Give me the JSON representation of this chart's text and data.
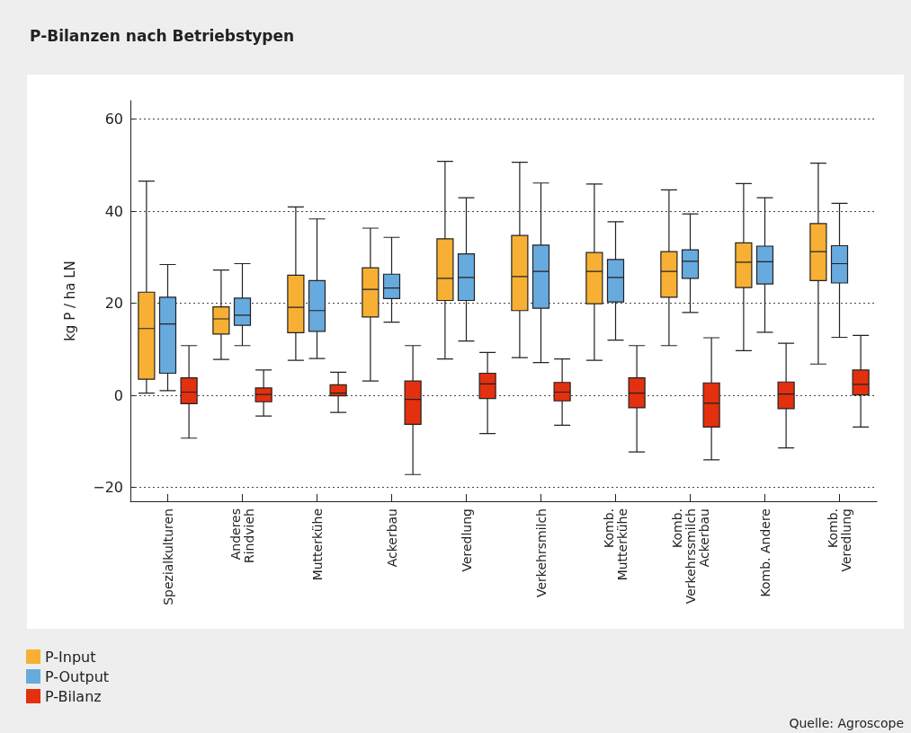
{
  "chart_data": {
    "type": "box",
    "title": "P-Bilanzen nach Betriebstypen",
    "ylabel": "kg P / ha LN",
    "categories": [
      "Spezialkulturen",
      "Anderes\nRindvieh",
      "Mutterkühe",
      "Ackerbau",
      "Veredlung",
      "Verkehrsmilch",
      "Komb.\nMutterkühe",
      "Komb.\nVerkehrssmilch\nAckerbau",
      "Komb. Andere",
      "Komb.\nVeredlung"
    ],
    "ylim": [
      -23,
      64
    ],
    "yticks": [
      -20,
      0,
      20,
      40,
      60
    ],
    "grid": "y",
    "legend": "bottom left",
    "annotations": [
      "Quelle: Agroscope"
    ],
    "series": [
      {
        "name": "P-Input",
        "color": "#f7b033",
        "boxes": [
          {
            "low": 0.5,
            "q1": 3.5,
            "median": 14.5,
            "q3": 22.4,
            "high": 46.5
          },
          {
            "low": 7.8,
            "q1": 13.3,
            "median": 16.6,
            "q3": 19.2,
            "high": 27.2
          },
          {
            "low": 7.6,
            "q1": 13.6,
            "median": 19.1,
            "q3": 26.1,
            "high": 40.9
          },
          {
            "low": 3.1,
            "q1": 17,
            "median": 23,
            "q3": 27.7,
            "high": 36.3
          },
          {
            "low": 7.9,
            "q1": 20.6,
            "median": 25.4,
            "q3": 34,
            "high": 50.8
          },
          {
            "low": 8.2,
            "q1": 18.4,
            "median": 25.8,
            "q3": 34.7,
            "high": 50.6
          },
          {
            "low": 7.6,
            "q1": 19.9,
            "median": 26.9,
            "q3": 31,
            "high": 45.9
          },
          {
            "low": 10.8,
            "q1": 21.3,
            "median": 26.9,
            "q3": 31.2,
            "high": 44.6
          },
          {
            "low": 9.7,
            "q1": 23.4,
            "median": 28.9,
            "q3": 33.1,
            "high": 46
          },
          {
            "low": 6.8,
            "q1": 24.9,
            "median": 31.2,
            "q3": 37.3,
            "high": 50.4
          }
        ]
      },
      {
        "name": "P-Output",
        "color": "#67aade",
        "boxes": [
          {
            "low": 1,
            "q1": 4.8,
            "median": 15.5,
            "q3": 21.3,
            "high": 28.4
          },
          {
            "low": 10.8,
            "q1": 15.2,
            "median": 17.4,
            "q3": 21.1,
            "high": 28.6
          },
          {
            "low": 8,
            "q1": 13.9,
            "median": 18.4,
            "q3": 24.9,
            "high": 38.3
          },
          {
            "low": 15.9,
            "q1": 21,
            "median": 23.3,
            "q3": 26.3,
            "high": 34.3
          },
          {
            "low": 11.8,
            "q1": 20.6,
            "median": 25.6,
            "q3": 30.7,
            "high": 42.9
          },
          {
            "low": 7.1,
            "q1": 18.9,
            "median": 26.9,
            "q3": 32.6,
            "high": 46.1
          },
          {
            "low": 12,
            "q1": 20.3,
            "median": 25.6,
            "q3": 29.5,
            "high": 37.7
          },
          {
            "low": 18,
            "q1": 25.4,
            "median": 29.1,
            "q3": 31.6,
            "high": 39.4
          },
          {
            "low": 13.7,
            "q1": 24.2,
            "median": 29,
            "q3": 32.4,
            "high": 42.9
          },
          {
            "low": 12.6,
            "q1": 24.4,
            "median": 28.6,
            "q3": 32.5,
            "high": 41.7
          }
        ]
      },
      {
        "name": "P-Bilanz",
        "color": "#e3300e",
        "boxes": [
          {
            "low": -9.3,
            "q1": -1.8,
            "median": 0.7,
            "q3": 3.8,
            "high": 10.8
          },
          {
            "low": -4.5,
            "q1": -1.4,
            "median": 0.2,
            "q3": 1.6,
            "high": 5.5
          },
          {
            "low": -3.7,
            "q1": -0.1,
            "median": 0.5,
            "q3": 2.3,
            "high": 5
          },
          {
            "low": -17.2,
            "q1": -6.3,
            "median": -0.9,
            "q3": 3.1,
            "high": 10.8
          },
          {
            "low": -8.3,
            "q1": -0.7,
            "median": 2.5,
            "q3": 4.8,
            "high": 9.3
          },
          {
            "low": -6.5,
            "q1": -1.2,
            "median": 0.7,
            "q3": 2.8,
            "high": 7.9
          },
          {
            "low": -12.3,
            "q1": -2.7,
            "median": 0.5,
            "q3": 3.8,
            "high": 10.8
          },
          {
            "low": -14,
            "q1": -6.9,
            "median": -1.7,
            "q3": 2.7,
            "high": 12.5
          },
          {
            "low": -11.4,
            "q1": -2.9,
            "median": 0.3,
            "q3": 2.9,
            "high": 11.3
          },
          {
            "low": -6.9,
            "q1": 0.1,
            "median": 2.4,
            "q3": 5.5,
            "high": 13
          }
        ]
      }
    ]
  }
}
